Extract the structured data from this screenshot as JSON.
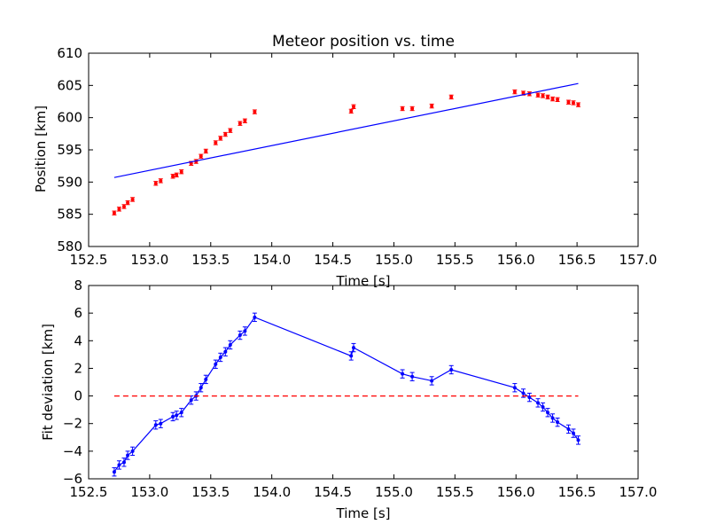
{
  "chart_data": [
    {
      "type": "scatter",
      "title": "Meteor position vs. time",
      "xlabel": "Time [s]",
      "ylabel": "Position [km]",
      "xlim": [
        152.5,
        157.0
      ],
      "ylim": [
        580,
        610
      ],
      "xticks": [
        "152.5",
        "153.0",
        "153.5",
        "154.0",
        "154.5",
        "155.0",
        "155.5",
        "156.0",
        "156.5",
        "157.0"
      ],
      "yticks": [
        "580",
        "585",
        "590",
        "595",
        "600",
        "605",
        "610"
      ],
      "grid": false,
      "series": [
        {
          "style": "points-with-errorbars",
          "color": "#ff0000",
          "yerr": 0.3,
          "x": [
            152.71,
            152.75,
            152.79,
            152.82,
            152.86,
            153.05,
            153.09,
            153.19,
            153.22,
            153.26,
            153.34,
            153.38,
            153.42,
            153.46,
            153.54,
            153.58,
            153.62,
            153.66,
            153.74,
            153.78,
            153.86,
            154.65,
            154.67,
            155.07,
            155.15,
            155.31,
            155.47,
            155.99,
            156.06,
            156.11,
            156.18,
            156.22,
            156.26,
            156.3,
            156.34,
            156.43,
            156.47,
            156.51
          ],
          "y": [
            585.2,
            585.8,
            586.2,
            586.8,
            587.3,
            589.8,
            590.2,
            590.9,
            591.1,
            591.6,
            592.9,
            593.2,
            594.0,
            594.8,
            596.1,
            596.8,
            597.4,
            598.0,
            599.1,
            599.5,
            600.9,
            601.0,
            601.7,
            601.4,
            601.4,
            601.8,
            603.2,
            604.0,
            603.8,
            603.7,
            603.5,
            603.4,
            603.2,
            602.9,
            602.8,
            602.4,
            602.3,
            602.0
          ]
        },
        {
          "style": "line",
          "color": "#0000ff",
          "x": [
            152.71,
            156.51
          ],
          "y": [
            590.7,
            605.3
          ]
        }
      ]
    },
    {
      "type": "line",
      "title": "",
      "xlabel": "Time [s]",
      "ylabel": "Fit deviation [km]",
      "xlim": [
        152.5,
        157.0
      ],
      "ylim": [
        -6,
        8
      ],
      "xticks": [
        "152.5",
        "153.0",
        "153.5",
        "154.0",
        "154.5",
        "155.0",
        "155.5",
        "156.0",
        "156.5",
        "157.0"
      ],
      "yticks": [
        "−6",
        "−4",
        "−2",
        "0",
        "2",
        "4",
        "6",
        "8"
      ],
      "grid": false,
      "series": [
        {
          "style": "line-with-errorbars",
          "color": "#0000ff",
          "yerr": 0.3,
          "x": [
            152.71,
            152.75,
            152.79,
            152.82,
            152.86,
            153.05,
            153.09,
            153.19,
            153.22,
            153.26,
            153.34,
            153.38,
            153.42,
            153.46,
            153.54,
            153.58,
            153.62,
            153.66,
            153.74,
            153.78,
            153.86,
            154.65,
            154.67,
            155.07,
            155.15,
            155.31,
            155.47,
            155.99,
            156.06,
            156.11,
            156.18,
            156.22,
            156.26,
            156.3,
            156.34,
            156.43,
            156.47,
            156.51
          ],
          "y": [
            -5.5,
            -5.0,
            -4.8,
            -4.3,
            -4.0,
            -2.1,
            -2.0,
            -1.5,
            -1.4,
            -1.2,
            -0.3,
            0.0,
            0.6,
            1.2,
            2.3,
            2.8,
            3.2,
            3.7,
            4.4,
            4.7,
            5.7,
            2.9,
            3.5,
            1.6,
            1.4,
            1.1,
            1.9,
            0.6,
            0.2,
            -0.1,
            -0.5,
            -0.8,
            -1.2,
            -1.6,
            -1.9,
            -2.4,
            -2.7,
            -3.2
          ]
        },
        {
          "style": "dashed-line",
          "color": "#ff0000",
          "x": [
            152.71,
            156.51
          ],
          "y": [
            0,
            0
          ]
        }
      ]
    }
  ]
}
